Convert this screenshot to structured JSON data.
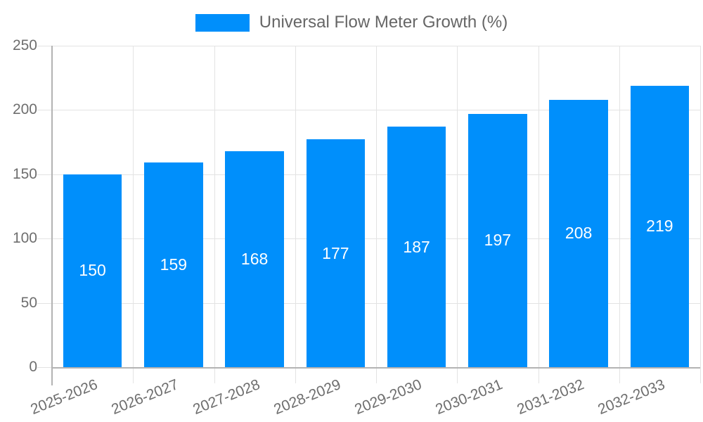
{
  "legend": {
    "label": "Universal Flow Meter Growth (%)"
  },
  "chart_data": {
    "type": "bar",
    "title": "Universal Flow Meter Growth (%)",
    "categories": [
      "2025-2026",
      "2026-2027",
      "2027-2028",
      "2028-2029",
      "2029-2030",
      "2030-2031",
      "2031-2032",
      "2032-2033"
    ],
    "values": [
      150,
      159,
      168,
      177,
      187,
      197,
      208,
      219
    ],
    "series": [
      {
        "name": "Universal Flow Meter Growth (%)",
        "values": [
          150,
          159,
          168,
          177,
          187,
          197,
          208,
          219
        ]
      }
    ],
    "xlabel": "",
    "ylabel": "",
    "ylim": [
      0,
      250
    ],
    "yticks": [
      0,
      50,
      100,
      150,
      200,
      250
    ],
    "grid": true,
    "legend_position": "top",
    "bar_value_labels_inside": true,
    "x_tick_rotation_deg": -22,
    "colors": {
      "bar": "#008FFB",
      "bar_label": "#FFFFFF",
      "grid": "#E3E3E3",
      "axis": "#B3B3B3",
      "tick_text": "#6E6E6E",
      "legend_text": "#666666",
      "background": "#FFFFFF"
    }
  }
}
